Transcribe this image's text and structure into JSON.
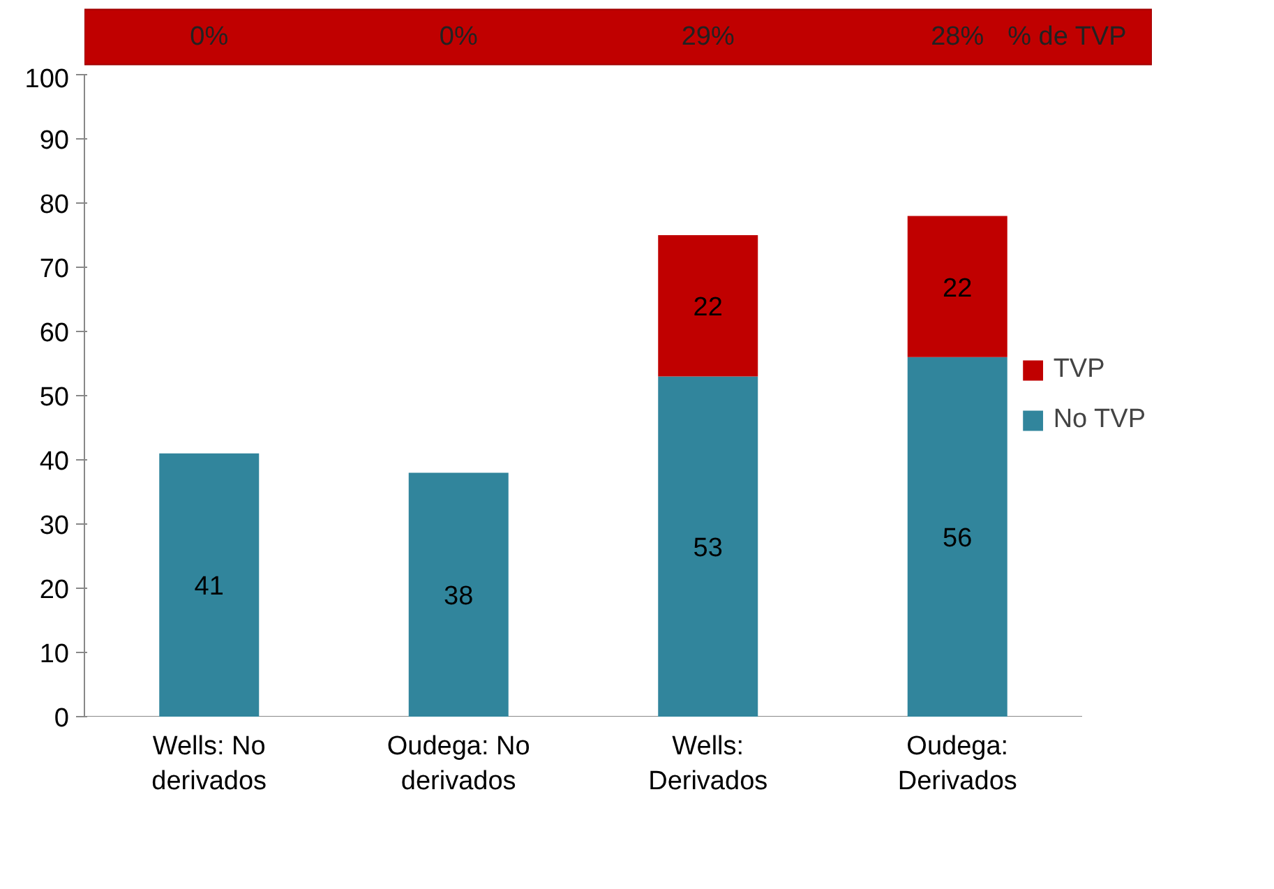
{
  "chart_data": {
    "type": "bar",
    "stacked": true,
    "categories": [
      "Wells: No derivados",
      "Oudega: No derivados",
      "Wells: Derivados",
      "Oudega: Derivados"
    ],
    "series": [
      {
        "name": "No TVP",
        "color": "#31859c",
        "values": [
          41,
          38,
          53,
          56
        ],
        "value_labels": [
          "41",
          "38",
          "53",
          "56"
        ]
      },
      {
        "name": "TVP",
        "color": "#c00000",
        "values": [
          0,
          0,
          22,
          22
        ],
        "value_labels": [
          null,
          null,
          "22",
          "22"
        ]
      }
    ],
    "ylim": [
      0,
      100
    ],
    "yticks": [
      0,
      10,
      20,
      30,
      40,
      50,
      60,
      70,
      80,
      90,
      100
    ],
    "grid": false,
    "legend": "right",
    "annotations": [
      "0%",
      "0%",
      "29%",
      "28%",
      "% de TVP"
    ]
  }
}
